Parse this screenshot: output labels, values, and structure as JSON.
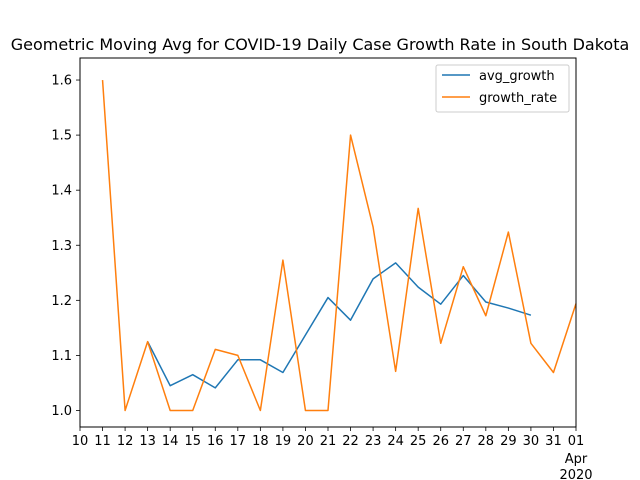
{
  "chart_data": {
    "type": "line",
    "title": "Geometric Moving Avg for COVID-19 Daily Case Growth Rate in South Dakota",
    "xlabel": "",
    "ylabel": "",
    "x_ticks": [
      "10",
      "11",
      "12",
      "13",
      "14",
      "15",
      "16",
      "17",
      "18",
      "19",
      "20",
      "21",
      "22",
      "23",
      "24",
      "25",
      "26",
      "27",
      "28",
      "29",
      "30",
      "31",
      "01"
    ],
    "x_tick_sublabels": [
      "Apr",
      "2020"
    ],
    "x_range": [
      "2020-03-10",
      "2020-04-01"
    ],
    "ylim": [
      0.97,
      1.64
    ],
    "y_ticks": [
      "1.0",
      "1.1",
      "1.2",
      "1.3",
      "1.4",
      "1.5",
      "1.6"
    ],
    "legend": {
      "position": "top-right"
    },
    "grid": false,
    "series": [
      {
        "name": "avg_growth",
        "color": "#1f77b4",
        "x": [
          "2020-03-13",
          "2020-03-14",
          "2020-03-15",
          "2020-03-16",
          "2020-03-17",
          "2020-03-18",
          "2020-03-19",
          "2020-03-20",
          "2020-03-21",
          "2020-03-22",
          "2020-03-23",
          "2020-03-24",
          "2020-03-25",
          "2020-03-26",
          "2020-03-27",
          "2020-03-28",
          "2020-03-29",
          "2020-03-30"
        ],
        "y": [
          1.125,
          1.045,
          1.065,
          1.041,
          1.092,
          1.092,
          1.069,
          1.137,
          1.205,
          1.164,
          1.239,
          1.268,
          1.224,
          1.193,
          1.245,
          1.197,
          1.186,
          1.173
        ]
      },
      {
        "name": "growth_rate",
        "color": "#ff7f0e",
        "x": [
          "2020-03-11",
          "2020-03-12",
          "2020-03-13",
          "2020-03-14",
          "2020-03-15",
          "2020-03-16",
          "2020-03-17",
          "2020-03-18",
          "2020-03-19",
          "2020-03-20",
          "2020-03-21",
          "2020-03-22",
          "2020-03-23",
          "2020-03-24",
          "2020-03-25",
          "2020-03-26",
          "2020-03-27",
          "2020-03-28",
          "2020-03-29",
          "2020-03-30",
          "2020-03-31",
          "2020-04-01"
        ],
        "y": [
          1.6,
          1.0,
          1.125,
          1.0,
          1.0,
          1.111,
          1.1,
          1.0,
          1.273,
          1.0,
          1.0,
          1.5,
          1.333,
          1.071,
          1.367,
          1.122,
          1.261,
          1.172,
          1.324,
          1.122,
          1.069,
          1.194
        ]
      }
    ]
  }
}
